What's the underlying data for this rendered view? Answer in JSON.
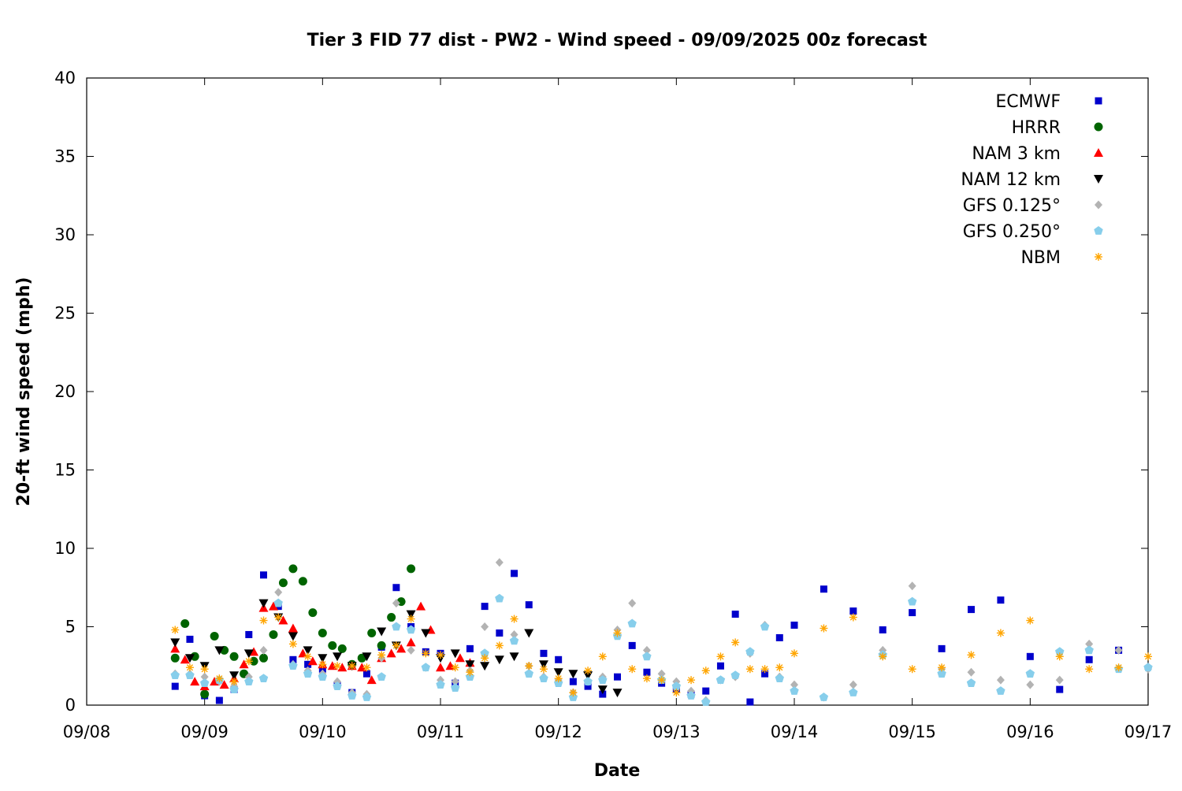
{
  "chart_data": {
    "type": "scatter",
    "title": "Tier 3 FID 77 dist - PW2 - Wind speed - 09/09/2025 00z forecast",
    "xlabel": "Date",
    "ylabel": "20-ft wind speed (mph)",
    "xlim": [
      "09/08 00:00",
      "09/17 00:00"
    ],
    "ylim": [
      0,
      40
    ],
    "x_ticks": [
      "09/08",
      "09/09",
      "09/10",
      "09/11",
      "09/12",
      "09/13",
      "09/14",
      "09/15",
      "09/16",
      "09/17"
    ],
    "y_ticks": [
      0,
      5,
      10,
      15,
      20,
      25,
      30,
      35,
      40
    ],
    "grid": false,
    "legend_position": "top-right",
    "series": [
      {
        "name": "ECMWF",
        "marker": "square",
        "color": "#0000cc",
        "x": [
          "09/08 18:00",
          "09/08 21:00",
          "09/09 00:00",
          "09/09 03:00",
          "09/09 06:00",
          "09/09 09:00",
          "09/09 12:00",
          "09/09 15:00",
          "09/09 18:00",
          "09/09 21:00",
          "09/10 00:00",
          "09/10 03:00",
          "09/10 06:00",
          "09/10 09:00",
          "09/10 12:00",
          "09/10 15:00",
          "09/10 18:00",
          "09/10 21:00",
          "09/11 00:00",
          "09/11 03:00",
          "09/11 06:00",
          "09/11 09:00",
          "09/11 12:00",
          "09/11 15:00",
          "09/11 18:00",
          "09/11 21:00",
          "09/12 00:00",
          "09/12 03:00",
          "09/12 06:00",
          "09/12 09:00",
          "09/12 12:00",
          "09/12 15:00",
          "09/12 18:00",
          "09/12 21:00",
          "09/13 00:00",
          "09/13 03:00",
          "09/13 06:00",
          "09/13 09:00",
          "09/13 12:00",
          "09/13 15:00",
          "09/13 18:00",
          "09/13 21:00",
          "09/14 00:00",
          "09/14 06:00",
          "09/14 12:00",
          "09/14 18:00",
          "09/15 00:00",
          "09/15 06:00",
          "09/15 12:00",
          "09/15 18:00",
          "09/16 00:00",
          "09/16 06:00",
          "09/16 12:00",
          "09/16 18:00"
        ],
        "y": [
          1.2,
          4.2,
          0.6,
          0.3,
          1.0,
          4.5,
          8.3,
          6.3,
          2.9,
          2.6,
          2.3,
          1.3,
          0.8,
          2.0,
          3.7,
          7.5,
          5.0,
          3.4,
          3.3,
          1.4,
          3.6,
          6.3,
          4.6,
          8.4,
          6.4,
          3.3,
          2.9,
          1.5,
          1.2,
          0.7,
          1.8,
          3.8,
          2.1,
          1.4,
          1.0,
          0.7,
          0.9,
          2.5,
          5.8,
          0.2,
          2.0,
          4.3,
          5.1,
          7.4,
          6.0,
          4.8,
          5.9,
          3.6,
          6.1,
          6.7,
          3.1,
          1.0,
          2.9,
          3.5
        ]
      },
      {
        "name": "HRRR",
        "marker": "circle",
        "color": "#006400",
        "x": [
          "09/08 18:00",
          "09/08 20:00",
          "09/08 22:00",
          "09/09 00:00",
          "09/09 02:00",
          "09/09 04:00",
          "09/09 06:00",
          "09/09 08:00",
          "09/09 10:00",
          "09/09 12:00",
          "09/09 14:00",
          "09/09 16:00",
          "09/09 18:00",
          "09/09 20:00",
          "09/09 22:00",
          "09/10 00:00",
          "09/10 02:00",
          "09/10 04:00",
          "09/10 06:00",
          "09/10 08:00",
          "09/10 10:00",
          "09/10 12:00",
          "09/10 14:00",
          "09/10 16:00",
          "09/10 18:00"
        ],
        "y": [
          3.0,
          5.2,
          3.1,
          0.7,
          4.4,
          3.5,
          3.1,
          2.0,
          2.8,
          3.0,
          4.5,
          7.8,
          8.7,
          7.9,
          5.9,
          4.6,
          3.8,
          3.6,
          2.6,
          3.0,
          4.6,
          3.8,
          5.6,
          6.6,
          8.7
        ]
      },
      {
        "name": "NAM 3 km",
        "marker": "triangle-up",
        "color": "#ff0000",
        "x": [
          "09/08 18:00",
          "09/08 20:00",
          "09/08 22:00",
          "09/09 00:00",
          "09/09 02:00",
          "09/09 04:00",
          "09/09 06:00",
          "09/09 08:00",
          "09/09 10:00",
          "09/09 12:00",
          "09/09 14:00",
          "09/09 16:00",
          "09/09 18:00",
          "09/09 20:00",
          "09/09 22:00",
          "09/10 00:00",
          "09/10 02:00",
          "09/10 04:00",
          "09/10 06:00",
          "09/10 08:00",
          "09/10 10:00",
          "09/10 12:00",
          "09/10 14:00",
          "09/10 16:00",
          "09/10 18:00",
          "09/10 20:00",
          "09/10 22:00",
          "09/11 00:00",
          "09/11 02:00",
          "09/11 04:00",
          "09/11 06:00"
        ],
        "y": [
          3.6,
          2.9,
          1.5,
          1.2,
          1.5,
          1.3,
          1.7,
          2.6,
          3.4,
          6.2,
          6.3,
          5.4,
          4.9,
          3.3,
          2.8,
          2.6,
          2.5,
          2.4,
          2.5,
          2.4,
          1.6,
          3.0,
          3.3,
          3.6,
          4.0,
          6.3,
          4.8,
          2.4,
          2.5,
          3.0,
          2.7
        ]
      },
      {
        "name": "NAM 12 km",
        "marker": "triangle-down",
        "color": "#000000",
        "x": [
          "09/08 18:00",
          "09/08 21:00",
          "09/09 00:00",
          "09/09 03:00",
          "09/09 06:00",
          "09/09 09:00",
          "09/09 12:00",
          "09/09 15:00",
          "09/09 18:00",
          "09/09 21:00",
          "09/10 00:00",
          "09/10 03:00",
          "09/10 06:00",
          "09/10 09:00",
          "09/10 12:00",
          "09/10 15:00",
          "09/10 18:00",
          "09/10 21:00",
          "09/11 00:00",
          "09/11 03:00",
          "09/11 06:00",
          "09/11 09:00",
          "09/11 12:00",
          "09/11 15:00",
          "09/11 18:00",
          "09/11 21:00",
          "09/12 00:00",
          "09/12 03:00",
          "09/12 06:00",
          "09/12 09:00",
          "09/12 12:00"
        ],
        "y": [
          4.0,
          3.0,
          2.5,
          3.5,
          1.9,
          3.3,
          6.5,
          5.6,
          4.4,
          3.5,
          3.0,
          3.1,
          2.5,
          3.1,
          4.7,
          3.8,
          5.8,
          4.6,
          3.0,
          3.3,
          2.6,
          2.5,
          2.9,
          3.1,
          4.6,
          2.6,
          2.1,
          2.0,
          1.9,
          1.0,
          0.8
        ]
      },
      {
        "name": "GFS 0.125°",
        "marker": "diamond",
        "color": "#b3b3b3",
        "x": [
          "09/08 18:00",
          "09/08 21:00",
          "09/09 00:00",
          "09/09 03:00",
          "09/09 06:00",
          "09/09 09:00",
          "09/09 12:00",
          "09/09 15:00",
          "09/09 18:00",
          "09/09 21:00",
          "09/10 00:00",
          "09/10 03:00",
          "09/10 06:00",
          "09/10 09:00",
          "09/10 12:00",
          "09/10 15:00",
          "09/10 18:00",
          "09/10 21:00",
          "09/11 00:00",
          "09/11 03:00",
          "09/11 06:00",
          "09/11 09:00",
          "09/11 12:00",
          "09/11 15:00",
          "09/11 18:00",
          "09/11 21:00",
          "09/12 00:00",
          "09/12 03:00",
          "09/12 06:00",
          "09/12 09:00",
          "09/12 12:00",
          "09/12 15:00",
          "09/12 18:00",
          "09/12 21:00",
          "09/13 00:00",
          "09/13 03:00",
          "09/13 06:00",
          "09/13 09:00",
          "09/13 12:00",
          "09/13 15:00",
          "09/13 18:00",
          "09/13 21:00",
          "09/14 00:00",
          "09/14 06:00",
          "09/14 12:00",
          "09/14 18:00",
          "09/15 00:00",
          "09/15 06:00",
          "09/15 12:00",
          "09/15 18:00",
          "09/16 00:00",
          "09/16 06:00",
          "09/16 12:00",
          "09/16 18:00",
          "09/17 00:00"
        ],
        "y": [
          2.0,
          2.0,
          1.8,
          1.5,
          1.2,
          1.8,
          3.5,
          7.2,
          2.6,
          2.2,
          2.0,
          1.5,
          0.8,
          0.7,
          3.0,
          6.5,
          3.5,
          2.4,
          1.6,
          1.5,
          2.2,
          5.0,
          9.1,
          4.5,
          2.5,
          1.8,
          1.6,
          0.8,
          1.5,
          1.8,
          4.8,
          6.5,
          3.5,
          2.0,
          1.5,
          0.9,
          0.3,
          1.6,
          1.8,
          3.3,
          5.1,
          1.8,
          1.3,
          0.5,
          1.3,
          3.5,
          7.6,
          2.3,
          2.1,
          1.6,
          1.3,
          1.6,
          3.9,
          3.5,
          2.3
        ]
      },
      {
        "name": "GFS 0.250°",
        "marker": "pentagon",
        "color": "#87ceeb",
        "x": [
          "09/08 18:00",
          "09/08 21:00",
          "09/09 00:00",
          "09/09 03:00",
          "09/09 06:00",
          "09/09 09:00",
          "09/09 12:00",
          "09/09 15:00",
          "09/09 18:00",
          "09/09 21:00",
          "09/10 00:00",
          "09/10 03:00",
          "09/10 06:00",
          "09/10 09:00",
          "09/10 12:00",
          "09/10 15:00",
          "09/10 18:00",
          "09/10 21:00",
          "09/11 00:00",
          "09/11 03:00",
          "09/11 06:00",
          "09/11 09:00",
          "09/11 12:00",
          "09/11 15:00",
          "09/11 18:00",
          "09/11 21:00",
          "09/12 00:00",
          "09/12 03:00",
          "09/12 06:00",
          "09/12 09:00",
          "09/12 12:00",
          "09/12 15:00",
          "09/12 18:00",
          "09/12 21:00",
          "09/13 00:00",
          "09/13 03:00",
          "09/13 06:00",
          "09/13 09:00",
          "09/13 12:00",
          "09/13 15:00",
          "09/13 18:00",
          "09/13 21:00",
          "09/14 00:00",
          "09/14 06:00",
          "09/14 12:00",
          "09/14 18:00",
          "09/15 00:00",
          "09/15 06:00",
          "09/15 12:00",
          "09/15 18:00",
          "09/16 00:00",
          "09/16 06:00",
          "09/16 12:00",
          "09/16 18:00",
          "09/17 00:00"
        ],
        "y": [
          1.9,
          1.9,
          1.4,
          1.6,
          1.0,
          1.5,
          1.7,
          6.5,
          2.5,
          2.0,
          1.8,
          1.2,
          0.6,
          0.5,
          1.8,
          5.0,
          4.8,
          2.4,
          1.3,
          1.1,
          1.8,
          3.3,
          6.8,
          4.1,
          2.0,
          1.7,
          1.4,
          0.5,
          1.5,
          1.6,
          4.4,
          5.2,
          3.1,
          1.6,
          1.2,
          0.6,
          0.2,
          1.6,
          1.9,
          3.4,
          5.0,
          1.7,
          0.9,
          0.5,
          0.8,
          3.2,
          6.6,
          2.0,
          1.4,
          0.9,
          2.0,
          3.4,
          3.5,
          2.3,
          2.4
        ]
      },
      {
        "name": "NBM",
        "marker": "asterisk",
        "color": "#ffa500",
        "x": [
          "09/08 18:00",
          "09/08 21:00",
          "09/09 00:00",
          "09/09 03:00",
          "09/09 06:00",
          "09/09 09:00",
          "09/09 12:00",
          "09/09 15:00",
          "09/09 18:00",
          "09/09 21:00",
          "09/10 00:00",
          "09/10 03:00",
          "09/10 06:00",
          "09/10 09:00",
          "09/10 12:00",
          "09/10 15:00",
          "09/10 18:00",
          "09/10 21:00",
          "09/11 00:00",
          "09/11 03:00",
          "09/11 06:00",
          "09/11 09:00",
          "09/11 12:00",
          "09/11 15:00",
          "09/11 18:00",
          "09/11 21:00",
          "09/12 00:00",
          "09/12 03:00",
          "09/12 06:00",
          "09/12 09:00",
          "09/12 12:00",
          "09/12 15:00",
          "09/12 18:00",
          "09/12 21:00",
          "09/13 00:00",
          "09/13 03:00",
          "09/13 06:00",
          "09/13 09:00",
          "09/13 12:00",
          "09/13 15:00",
          "09/13 18:00",
          "09/13 21:00",
          "09/14 00:00",
          "09/14 06:00",
          "09/14 12:00",
          "09/14 18:00",
          "09/15 00:00",
          "09/15 06:00",
          "09/15 12:00",
          "09/15 18:00",
          "09/16 00:00",
          "09/16 06:00",
          "09/16 12:00",
          "09/16 18:00",
          "09/17 00:00"
        ],
        "y": [
          4.8,
          2.4,
          2.3,
          1.7,
          1.5,
          2.8,
          5.4,
          5.6,
          3.9,
          3.1,
          2.6,
          2.5,
          2.5,
          2.4,
          3.2,
          3.8,
          5.5,
          3.3,
          3.2,
          2.4,
          2.1,
          3.0,
          3.8,
          5.5,
          2.5,
          2.3,
          1.7,
          0.8,
          2.2,
          3.1,
          4.6,
          2.3,
          1.7,
          1.6,
          0.8,
          1.6,
          2.2,
          3.1,
          4.0,
          2.3,
          2.3,
          2.4,
          3.3,
          4.9,
          5.6,
          3.1,
          2.3,
          2.4,
          3.2,
          4.6,
          5.4,
          3.1,
          2.3,
          2.4,
          3.1
        ]
      }
    ]
  }
}
